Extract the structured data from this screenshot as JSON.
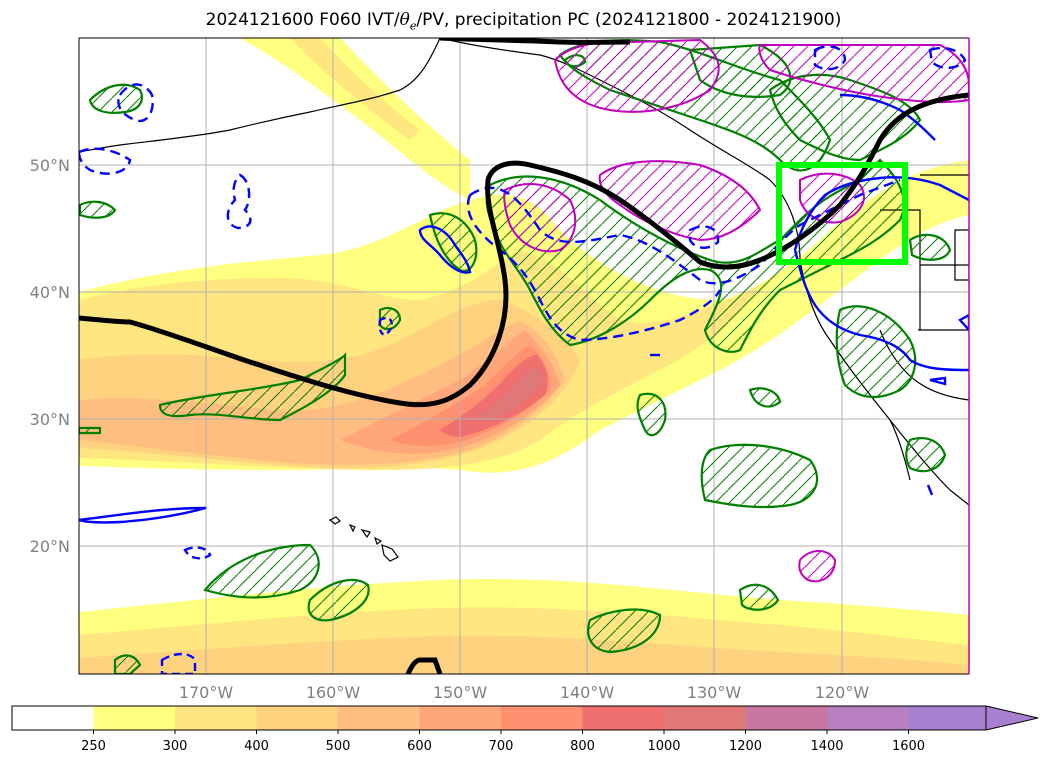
{
  "title": {
    "prefix": "2024121600 F060 IVT/",
    "theta": "θ",
    "sub": "e",
    "suffix": "/PV, precipitation PC (2024121800 - 2024121900)"
  },
  "map": {
    "lat_labels": [
      "50°N",
      "40°N",
      "30°N",
      "20°N"
    ],
    "lon_labels": [
      "170°W",
      "160°W",
      "150°W",
      "140°W",
      "130°W",
      "120°W"
    ],
    "extent": {
      "lon_min": -180,
      "lon_max": -110,
      "lat_min": 10,
      "lat_max": 60
    },
    "highlight_box": {
      "lon": [
        -125,
        -115
      ],
      "lat": [
        42,
        50
      ],
      "color": "#00ff00"
    }
  },
  "colorbar": {
    "levels": [
      "250",
      "300",
      "400",
      "500",
      "600",
      "700",
      "800",
      "1000",
      "1200",
      "1400",
      "1600"
    ],
    "colors": [
      "#ffffff",
      "#ffff80",
      "#ffe680",
      "#ffd280",
      "#ffbe80",
      "#ffa77a",
      "#ff9070",
      "#f07070",
      "#e07878",
      "#c878a0",
      "#b880c0",
      "#a880d0"
    ],
    "extend": "max"
  },
  "legend_colors": {
    "ivt_line": "#000000",
    "theta_dashed": "#0000ff",
    "precip_hatch": "#008000",
    "pv_contour": "#c000c0"
  }
}
